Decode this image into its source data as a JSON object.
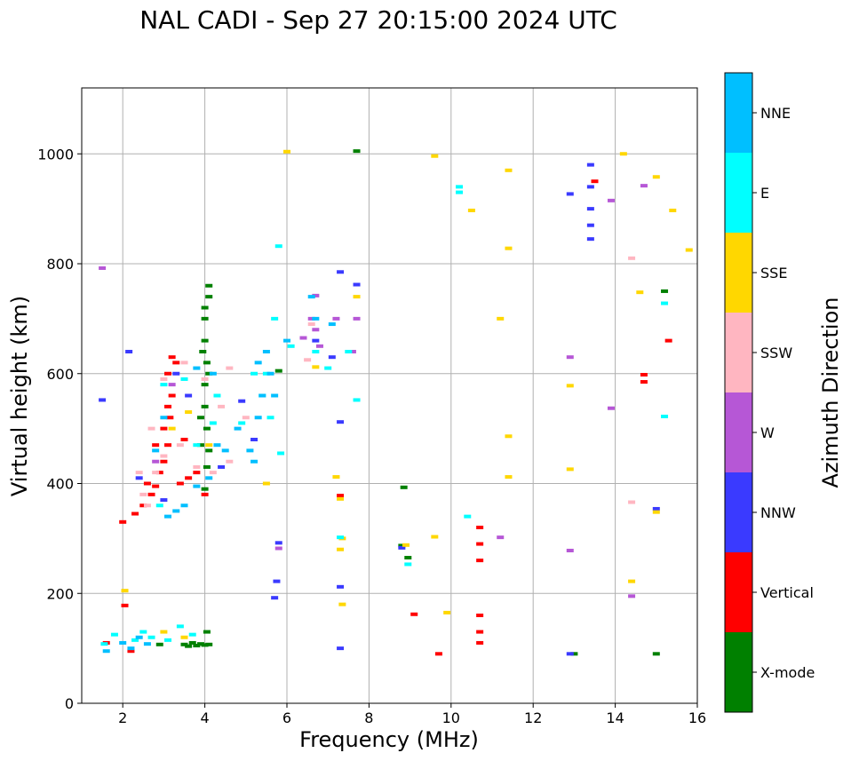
{
  "chart_data": {
    "type": "scatter",
    "title": "NAL CADI - Sep 27 20:15:00 2024 UTC",
    "xlabel": "Frequency (MHz)",
    "ylabel": "Virtual height (km)",
    "xlim": [
      1,
      16
    ],
    "ylim": [
      0,
      1120
    ],
    "xticks": [
      2,
      4,
      6,
      8,
      10,
      12,
      14,
      16
    ],
    "yticks": [
      0,
      200,
      400,
      600,
      800,
      1000
    ],
    "grid": true,
    "colorbar": {
      "label": "Azimuth Direction",
      "position": "right",
      "categories": [
        {
          "name": "X-mode",
          "color": "#008000"
        },
        {
          "name": "Vertical",
          "color": "#ff0000"
        },
        {
          "name": "NNW",
          "color": "#3a3aff"
        },
        {
          "name": "W",
          "color": "#b657d6"
        },
        {
          "name": "SSW",
          "color": "#ffb6c1"
        },
        {
          "name": "SSE",
          "color": "#ffd700"
        },
        {
          "name": "E",
          "color": "#00ffff"
        },
        {
          "name": "NNE",
          "color": "#00bfff"
        }
      ]
    },
    "series": [
      {
        "name": "X-mode",
        "points": [
          [
            3.8,
            105
          ],
          [
            3.9,
            108
          ],
          [
            4.0,
            106
          ],
          [
            4.1,
            107
          ],
          [
            3.6,
            104
          ],
          [
            3.7,
            110
          ],
          [
            4.05,
            130
          ],
          [
            2.9,
            107
          ],
          [
            3.5,
            107
          ],
          [
            4.0,
            720
          ],
          [
            4.1,
            760
          ],
          [
            4.0,
            660
          ],
          [
            4.05,
            620
          ],
          [
            4.1,
            600
          ],
          [
            4.0,
            540
          ],
          [
            3.9,
            520
          ],
          [
            4.05,
            500
          ],
          [
            4.1,
            460
          ],
          [
            4.05,
            430
          ],
          [
            3.9,
            470
          ],
          [
            4.0,
            390
          ],
          [
            5.8,
            605
          ],
          [
            7.7,
            1005
          ],
          [
            8.85,
            393
          ],
          [
            8.95,
            265
          ],
          [
            8.8,
            287
          ],
          [
            13.0,
            90
          ],
          [
            15.2,
            750
          ],
          [
            15.0,
            90
          ],
          [
            4.1,
            740
          ],
          [
            4.0,
            700
          ],
          [
            3.95,
            640
          ],
          [
            4.0,
            580
          ]
        ]
      },
      {
        "name": "Vertical",
        "points": [
          [
            2.3,
            345
          ],
          [
            2.5,
            360
          ],
          [
            2.7,
            380
          ],
          [
            2.8,
            395
          ],
          [
            2.9,
            420
          ],
          [
            3.0,
            440
          ],
          [
            3.1,
            470
          ],
          [
            3.15,
            520
          ],
          [
            3.2,
            560
          ],
          [
            3.1,
            600
          ],
          [
            3.3,
            620
          ],
          [
            3.4,
            400
          ],
          [
            3.6,
            410
          ],
          [
            3.8,
            420
          ],
          [
            4.0,
            380
          ],
          [
            3.2,
            630
          ],
          [
            3.1,
            540
          ],
          [
            2.0,
            330
          ],
          [
            2.05,
            178
          ],
          [
            1.6,
            110
          ],
          [
            2.2,
            95
          ],
          [
            7.3,
            378
          ],
          [
            9.1,
            162
          ],
          [
            9.7,
            90
          ],
          [
            10.7,
            320
          ],
          [
            10.7,
            290
          ],
          [
            10.7,
            260
          ],
          [
            10.7,
            160
          ],
          [
            10.7,
            130
          ],
          [
            10.7,
            110
          ],
          [
            13.5,
            950
          ],
          [
            15.3,
            660
          ],
          [
            14.7,
            598
          ],
          [
            14.7,
            585
          ],
          [
            3.5,
            480
          ],
          [
            2.6,
            400
          ],
          [
            2.8,
            470
          ],
          [
            3.0,
            500
          ]
        ]
      },
      {
        "name": "NNW",
        "points": [
          [
            1.5,
            552
          ],
          [
            2.15,
            640
          ],
          [
            3.3,
            600
          ],
          [
            3.6,
            560
          ],
          [
            5.8,
            292
          ],
          [
            5.75,
            222
          ],
          [
            5.7,
            192
          ],
          [
            7.3,
            512
          ],
          [
            7.3,
            212
          ],
          [
            7.3,
            100
          ],
          [
            7.3,
            785
          ],
          [
            7.7,
            762
          ],
          [
            8.8,
            283
          ],
          [
            13.4,
            980
          ],
          [
            13.4,
            940
          ],
          [
            13.4,
            900
          ],
          [
            13.4,
            870
          ],
          [
            13.4,
            845
          ],
          [
            12.9,
            927
          ],
          [
            12.9,
            90
          ],
          [
            15.0,
            354
          ],
          [
            4.9,
            550
          ],
          [
            5.2,
            480
          ],
          [
            2.4,
            410
          ],
          [
            3.0,
            370
          ],
          [
            4.4,
            430
          ],
          [
            6.7,
            660
          ],
          [
            7.1,
            630
          ]
        ]
      },
      {
        "name": "W",
        "points": [
          [
            1.5,
            792
          ],
          [
            5.8,
            282
          ],
          [
            6.7,
            742
          ],
          [
            6.6,
            700
          ],
          [
            6.7,
            680
          ],
          [
            6.8,
            650
          ],
          [
            7.2,
            700
          ],
          [
            7.7,
            700
          ],
          [
            7.6,
            640
          ],
          [
            11.2,
            302
          ],
          [
            12.9,
            630
          ],
          [
            12.9,
            278
          ],
          [
            13.9,
            537
          ],
          [
            14.4,
            195
          ],
          [
            14.7,
            942
          ],
          [
            13.9,
            915
          ],
          [
            6.4,
            665
          ],
          [
            3.2,
            580
          ],
          [
            2.8,
            440
          ]
        ]
      },
      {
        "name": "SSW",
        "points": [
          [
            2.4,
            420
          ],
          [
            2.5,
            380
          ],
          [
            2.6,
            360
          ],
          [
            2.8,
            420
          ],
          [
            3.0,
            450
          ],
          [
            3.4,
            470
          ],
          [
            3.8,
            430
          ],
          [
            4.2,
            420
          ],
          [
            4.6,
            440
          ],
          [
            4.4,
            540
          ],
          [
            4.0,
            590
          ],
          [
            3.5,
            620
          ],
          [
            3.0,
            590
          ],
          [
            2.7,
            500
          ],
          [
            6.6,
            690
          ],
          [
            6.5,
            625
          ],
          [
            14.4,
            810
          ],
          [
            14.4,
            366
          ],
          [
            4.6,
            610
          ],
          [
            5.0,
            520
          ]
        ]
      },
      {
        "name": "SSE",
        "points": [
          [
            6.0,
            1004
          ],
          [
            6.7,
            612
          ],
          [
            7.2,
            412
          ],
          [
            7.3,
            372
          ],
          [
            7.35,
            300
          ],
          [
            7.3,
            280
          ],
          [
            7.35,
            180
          ],
          [
            7.7,
            740
          ],
          [
            8.9,
            288
          ],
          [
            9.6,
            996
          ],
          [
            9.6,
            303
          ],
          [
            9.9,
            165
          ],
          [
            10.5,
            897
          ],
          [
            11.2,
            700
          ],
          [
            11.4,
            970
          ],
          [
            11.4,
            828
          ],
          [
            11.4,
            486
          ],
          [
            11.4,
            412
          ],
          [
            12.9,
            578
          ],
          [
            12.9,
            426
          ],
          [
            14.2,
            1000
          ],
          [
            14.4,
            222
          ],
          [
            14.6,
            748
          ],
          [
            15.0,
            958
          ],
          [
            15.4,
            897
          ],
          [
            15.8,
            825
          ],
          [
            15.0,
            348
          ],
          [
            2.05,
            205
          ],
          [
            3.5,
            120
          ],
          [
            3.0,
            130
          ],
          [
            3.6,
            530
          ],
          [
            3.2,
            500
          ],
          [
            4.1,
            470
          ],
          [
            5.5,
            400
          ]
        ]
      },
      {
        "name": "E",
        "points": [
          [
            1.55,
            108
          ],
          [
            1.8,
            125
          ],
          [
            2.3,
            115
          ],
          [
            2.5,
            130
          ],
          [
            2.7,
            120
          ],
          [
            3.1,
            115
          ],
          [
            3.4,
            140
          ],
          [
            3.7,
            125
          ],
          [
            3.0,
            580
          ],
          [
            3.5,
            590
          ],
          [
            4.3,
            560
          ],
          [
            4.9,
            510
          ],
          [
            5.2,
            600
          ],
          [
            5.4,
            560
          ],
          [
            5.6,
            520
          ],
          [
            5.5,
            600
          ],
          [
            5.8,
            832
          ],
          [
            5.7,
            700
          ],
          [
            5.85,
            455
          ],
          [
            6.1,
            650
          ],
          [
            6.7,
            640
          ],
          [
            7.0,
            610
          ],
          [
            7.5,
            640
          ],
          [
            7.7,
            552
          ],
          [
            10.2,
            940
          ],
          [
            10.2,
            930
          ],
          [
            10.4,
            340
          ],
          [
            8.95,
            253
          ],
          [
            15.2,
            728
          ],
          [
            15.2,
            522
          ],
          [
            7.3,
            302
          ],
          [
            4.2,
            510
          ],
          [
            3.8,
            470
          ],
          [
            2.9,
            360
          ]
        ]
      },
      {
        "name": "NNE",
        "points": [
          [
            1.6,
            95
          ],
          [
            2.0,
            110
          ],
          [
            2.2,
            100
          ],
          [
            2.4,
            120
          ],
          [
            2.6,
            108
          ],
          [
            3.1,
            340
          ],
          [
            3.3,
            350
          ],
          [
            3.5,
            360
          ],
          [
            3.8,
            395
          ],
          [
            4.1,
            410
          ],
          [
            4.3,
            470
          ],
          [
            4.5,
            460
          ],
          [
            4.8,
            500
          ],
          [
            5.1,
            460
          ],
          [
            5.2,
            440
          ],
          [
            5.3,
            520
          ],
          [
            5.4,
            560
          ],
          [
            5.3,
            620
          ],
          [
            5.5,
            640
          ],
          [
            5.6,
            600
          ],
          [
            5.7,
            560
          ],
          [
            6.0,
            660
          ],
          [
            6.7,
            700
          ],
          [
            6.6,
            740
          ],
          [
            7.1,
            690
          ],
          [
            3.8,
            610
          ],
          [
            4.2,
            600
          ],
          [
            3.0,
            520
          ],
          [
            2.8,
            460
          ]
        ]
      }
    ]
  }
}
